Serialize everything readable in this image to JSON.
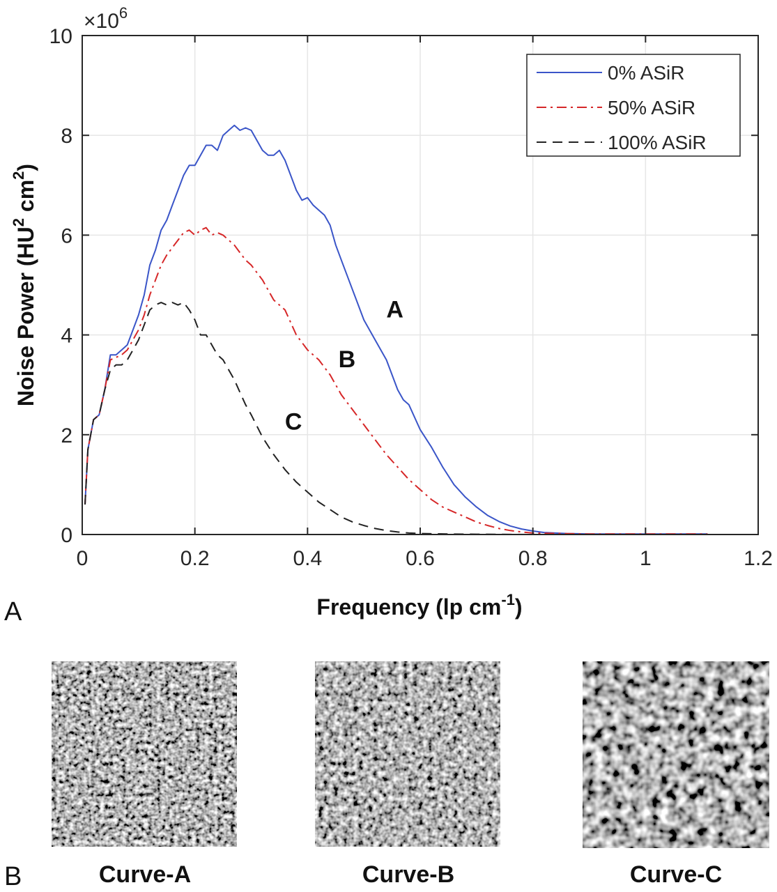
{
  "panels": {
    "a_label": "A",
    "b_label": "B"
  },
  "chart_data": {
    "type": "line",
    "xlabel": "Frequency (lp cm",
    "xlabel_sup": "-1",
    "xlabel_end": ")",
    "ylabel": "Noise Power (HU",
    "ylabel_sup1": "2",
    "ylabel_mid": " cm",
    "ylabel_sup2": "2",
    "ylabel_end": ")",
    "y_exponent_base": "×10",
    "y_exponent_power": "6",
    "xlim": [
      0,
      1.2
    ],
    "ylim": [
      0,
      10
    ],
    "xticks": [
      0,
      0.2,
      0.4,
      0.6,
      0.8,
      1,
      1.2
    ],
    "xtick_labels": [
      "0",
      "0.2",
      "0.4",
      "0.6",
      "0.8",
      "1",
      "1.2"
    ],
    "yticks": [
      0,
      2,
      4,
      6,
      8,
      10
    ],
    "ytick_labels": [
      "0",
      "2",
      "4",
      "6",
      "8",
      "10"
    ],
    "grid": true,
    "legend_position": "top-right",
    "series": [
      {
        "name": "0% ASiR",
        "color": "#3a55c8",
        "dash": "solid",
        "curve_label": "A",
        "x": [
          0.005,
          0.01,
          0.02,
          0.03,
          0.04,
          0.05,
          0.06,
          0.07,
          0.08,
          0.09,
          0.1,
          0.11,
          0.12,
          0.13,
          0.14,
          0.15,
          0.16,
          0.17,
          0.18,
          0.19,
          0.2,
          0.21,
          0.22,
          0.23,
          0.24,
          0.25,
          0.26,
          0.27,
          0.28,
          0.29,
          0.3,
          0.31,
          0.32,
          0.33,
          0.34,
          0.35,
          0.36,
          0.37,
          0.38,
          0.39,
          0.4,
          0.41,
          0.42,
          0.43,
          0.44,
          0.45,
          0.46,
          0.47,
          0.48,
          0.49,
          0.5,
          0.52,
          0.54,
          0.56,
          0.57,
          0.58,
          0.6,
          0.62,
          0.64,
          0.66,
          0.68,
          0.7,
          0.72,
          0.74,
          0.76,
          0.78,
          0.8,
          0.82,
          0.84,
          0.86,
          0.88,
          0.9,
          0.95,
          1.0,
          1.05,
          1.11
        ],
        "y": [
          0.6,
          1.7,
          2.3,
          2.4,
          2.9,
          3.6,
          3.6,
          3.7,
          3.8,
          4.1,
          4.4,
          4.8,
          5.4,
          5.7,
          6.1,
          6.3,
          6.6,
          6.9,
          7.2,
          7.4,
          7.4,
          7.6,
          7.8,
          7.8,
          7.7,
          8.0,
          8.1,
          8.2,
          8.1,
          8.15,
          8.1,
          7.9,
          7.7,
          7.6,
          7.6,
          7.7,
          7.5,
          7.2,
          6.9,
          6.7,
          6.75,
          6.6,
          6.5,
          6.4,
          6.2,
          5.8,
          5.5,
          5.2,
          4.9,
          4.6,
          4.3,
          3.9,
          3.5,
          2.9,
          2.7,
          2.6,
          2.1,
          1.75,
          1.35,
          1.0,
          0.75,
          0.55,
          0.38,
          0.26,
          0.17,
          0.11,
          0.07,
          0.04,
          0.03,
          0.02,
          0.015,
          0.01,
          0.01,
          0.01,
          0.01,
          0.01
        ]
      },
      {
        "name": "50% ASiR",
        "color": "#d62728",
        "dash": "dashdot",
        "curve_label": "B",
        "x": [
          0.005,
          0.01,
          0.02,
          0.03,
          0.04,
          0.05,
          0.06,
          0.07,
          0.08,
          0.09,
          0.1,
          0.11,
          0.12,
          0.13,
          0.14,
          0.15,
          0.16,
          0.17,
          0.18,
          0.19,
          0.2,
          0.21,
          0.22,
          0.23,
          0.24,
          0.25,
          0.26,
          0.27,
          0.28,
          0.29,
          0.3,
          0.32,
          0.34,
          0.36,
          0.38,
          0.4,
          0.42,
          0.44,
          0.46,
          0.48,
          0.5,
          0.52,
          0.54,
          0.56,
          0.58,
          0.6,
          0.62,
          0.64,
          0.66,
          0.68,
          0.7,
          0.72,
          0.74,
          0.76,
          0.78,
          0.8,
          0.85,
          0.9,
          1.0,
          1.11
        ],
        "y": [
          0.6,
          1.7,
          2.3,
          2.4,
          2.9,
          3.5,
          3.55,
          3.6,
          3.7,
          3.9,
          4.1,
          4.4,
          4.8,
          5.1,
          5.4,
          5.6,
          5.75,
          5.9,
          6.05,
          6.1,
          6.0,
          6.1,
          6.15,
          6.0,
          6.05,
          6.0,
          5.9,
          5.8,
          5.65,
          5.5,
          5.4,
          5.1,
          4.7,
          4.5,
          4.0,
          3.7,
          3.5,
          3.2,
          2.8,
          2.5,
          2.2,
          1.9,
          1.6,
          1.35,
          1.1,
          0.9,
          0.7,
          0.55,
          0.45,
          0.35,
          0.25,
          0.18,
          0.12,
          0.08,
          0.05,
          0.03,
          0.02,
          0.01,
          0.01,
          0.01
        ]
      },
      {
        "name": "100% ASiR",
        "color": "#222222",
        "dash": "dashed",
        "curve_label": "C",
        "x": [
          0.005,
          0.01,
          0.02,
          0.03,
          0.04,
          0.05,
          0.06,
          0.07,
          0.08,
          0.09,
          0.1,
          0.11,
          0.12,
          0.13,
          0.14,
          0.15,
          0.16,
          0.17,
          0.18,
          0.19,
          0.2,
          0.21,
          0.22,
          0.23,
          0.24,
          0.25,
          0.26,
          0.27,
          0.28,
          0.29,
          0.3,
          0.32,
          0.34,
          0.36,
          0.38,
          0.4,
          0.42,
          0.44,
          0.46,
          0.48,
          0.5,
          0.52,
          0.54,
          0.56,
          0.58,
          0.6,
          0.65,
          0.7,
          0.8,
          1.0,
          1.11
        ],
        "y": [
          0.6,
          1.7,
          2.3,
          2.4,
          2.9,
          3.3,
          3.4,
          3.4,
          3.5,
          3.7,
          3.9,
          4.2,
          4.5,
          4.6,
          4.65,
          4.6,
          4.65,
          4.6,
          4.65,
          4.5,
          4.3,
          4.0,
          4.0,
          3.8,
          3.6,
          3.5,
          3.3,
          3.1,
          2.85,
          2.6,
          2.4,
          1.95,
          1.6,
          1.3,
          1.05,
          0.85,
          0.65,
          0.5,
          0.35,
          0.25,
          0.18,
          0.12,
          0.08,
          0.05,
          0.03,
          0.02,
          0.01,
          0.005,
          0.0,
          0.0,
          0.0
        ]
      }
    ]
  },
  "noise_images": [
    {
      "caption": "Curve-A"
    },
    {
      "caption": "Curve-B"
    },
    {
      "caption": "Curve-C"
    }
  ]
}
